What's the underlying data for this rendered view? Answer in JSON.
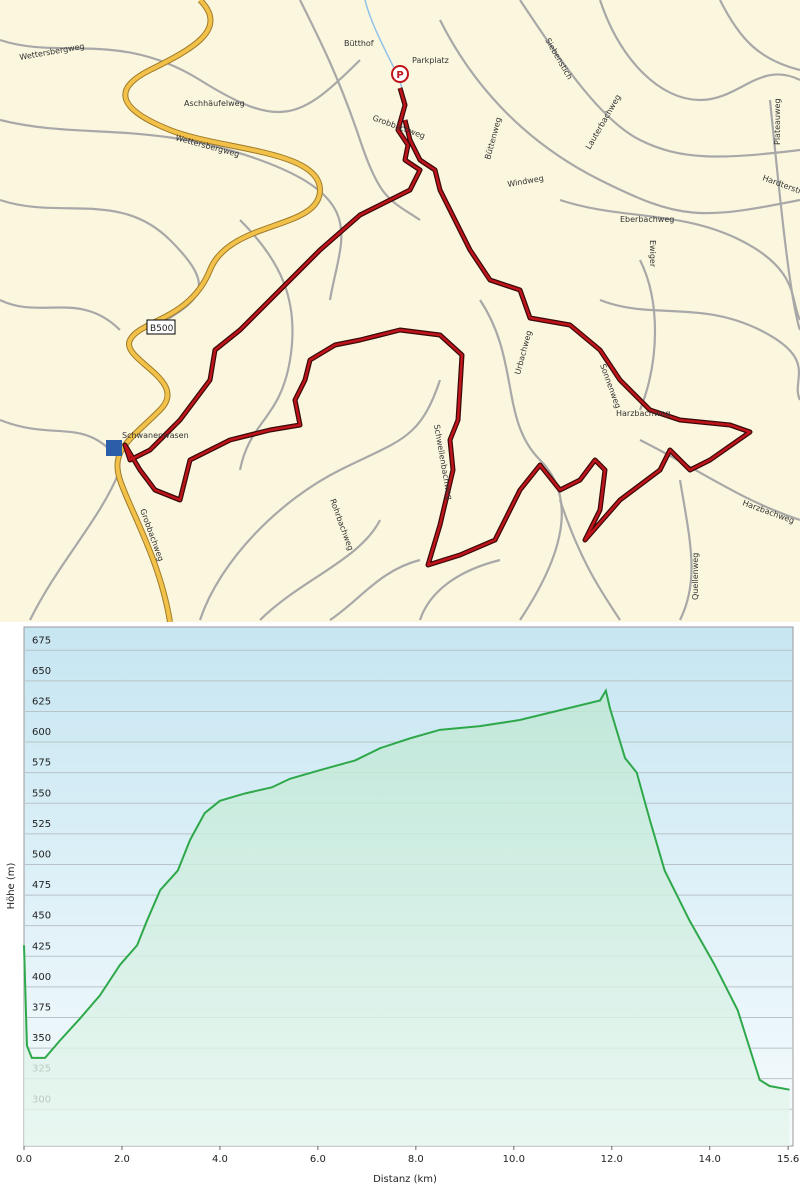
{
  "map": {
    "labels": [
      "Bütthof",
      "Parkplatz",
      "Aschhäufelweg",
      "Wettersbergweg",
      "Wettersbergweg",
      "B500",
      "Schwanenwasen",
      "Urbachweg",
      "Windweg",
      "Eberbachweg",
      "Harzbachweg",
      "Harzbachweg",
      "Quellenweg",
      "Ewiger",
      "Plateauweg",
      "Hardterstra",
      "Grobbachweg",
      "Büttenweg",
      "Schwellenbachweg",
      "Rohrbachweg",
      "Sonnenweg",
      "Lauterbachweg",
      "Siebenstich",
      "Grobbachweg"
    ]
  },
  "chart_data": {
    "type": "line",
    "xlabel": "Distanz  (km)",
    "ylabel": "Höhe (m)",
    "x": [
      0,
      0.06,
      0.16,
      0.43,
      0.73,
      1.14,
      1.55,
      1.96,
      2.31,
      2.51,
      2.78,
      3.14,
      3.39,
      3.69,
      4.0,
      4.51,
      5.06,
      5.43,
      6.04,
      6.76,
      7.27,
      7.88,
      8.49,
      9.31,
      10.12,
      10.94,
      11.76,
      11.88,
      11.96,
      12.27,
      12.51,
      12.78,
      13.08,
      13.59,
      14.1,
      14.57,
      15.02,
      15.22,
      15.63
    ],
    "series": [
      {
        "name": "Höhe",
        "color": "#2ea84a",
        "values": [
          434,
          352,
          342,
          342,
          356,
          374,
          393,
          418,
          434,
          454,
          479,
          495,
          520,
          542,
          552,
          558,
          563,
          570,
          577,
          585,
          595,
          603,
          610,
          613,
          618,
          626,
          634,
          642,
          628,
          587,
          575,
          536,
          495,
          454,
          418,
          381,
          324,
          319,
          316
        ]
      }
    ],
    "xlim": [
      0,
      15.7
    ],
    "ylim": [
      270,
      694
    ],
    "xticks": [
      {
        "value": 0,
        "label": "0.0"
      },
      {
        "value": 2,
        "label": "2.0"
      },
      {
        "value": 4,
        "label": "4.0"
      },
      {
        "value": 6,
        "label": "6.0"
      },
      {
        "value": 8,
        "label": "8.0"
      },
      {
        "value": 10,
        "label": "10.0"
      },
      {
        "value": 12,
        "label": "12.0"
      },
      {
        "value": 14,
        "label": "14.0"
      },
      15.6
    ],
    "yticks": [
      300,
      325,
      350,
      375,
      400,
      425,
      450,
      475,
      500,
      525,
      550,
      575,
      600,
      625,
      650,
      675
    ],
    "grid": true
  }
}
